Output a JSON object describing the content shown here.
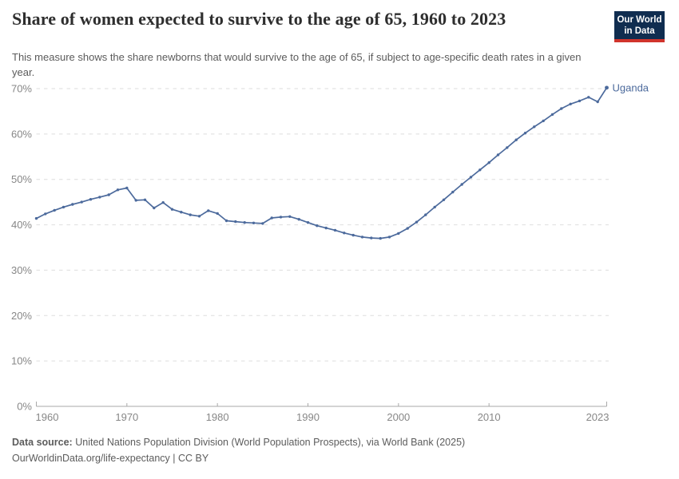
{
  "header": {
    "title": "Share of women expected to survive to the age of 65, 1960 to 2023",
    "subtitle": "This measure shows the share newborns that would survive to the age of 65, if subject to age-specific death rates in a given year.",
    "logo": {
      "line1": "Our World",
      "line2": "in Data"
    }
  },
  "chart_data": {
    "type": "line",
    "title": "Share of women expected to survive to the age of 65, 1960 to 2023",
    "xlabel": "",
    "ylabel": "",
    "y_unit": "%",
    "ylim": [
      0,
      70
    ],
    "y_ticks": [
      0,
      10,
      20,
      30,
      40,
      50,
      60,
      70
    ],
    "x_ticks": [
      1960,
      1970,
      1980,
      1990,
      2000,
      2010,
      2023
    ],
    "grid": "horizontal-dashed",
    "legend": "end-of-line-label",
    "series": [
      {
        "name": "Uganda",
        "color": "#4C6A9C",
        "x": [
          1960,
          1961,
          1962,
          1963,
          1964,
          1965,
          1966,
          1967,
          1968,
          1969,
          1970,
          1971,
          1972,
          1973,
          1974,
          1975,
          1976,
          1977,
          1978,
          1979,
          1980,
          1981,
          1982,
          1983,
          1984,
          1985,
          1986,
          1987,
          1988,
          1989,
          1990,
          1991,
          1992,
          1993,
          1994,
          1995,
          1996,
          1997,
          1998,
          1999,
          2000,
          2001,
          2002,
          2003,
          2004,
          2005,
          2006,
          2007,
          2008,
          2009,
          2010,
          2011,
          2012,
          2013,
          2014,
          2015,
          2016,
          2017,
          2018,
          2019,
          2020,
          2021,
          2022,
          2023
        ],
        "values": [
          41.4,
          42.4,
          43.2,
          43.9,
          44.5,
          45.0,
          45.6,
          46.1,
          46.6,
          47.7,
          48.1,
          45.4,
          45.5,
          43.7,
          44.9,
          43.4,
          42.8,
          42.2,
          41.9,
          43.1,
          42.5,
          40.9,
          40.7,
          40.5,
          40.4,
          40.3,
          41.5,
          41.7,
          41.8,
          41.2,
          40.5,
          39.8,
          39.3,
          38.8,
          38.2,
          37.7,
          37.3,
          37.1,
          37.0,
          37.3,
          38.1,
          39.2,
          40.6,
          42.2,
          43.9,
          45.5,
          47.2,
          48.9,
          50.5,
          52.1,
          53.7,
          55.4,
          57.0,
          58.7,
          60.2,
          61.6,
          62.9,
          64.3,
          65.6,
          66.6,
          67.3,
          68.1,
          67.1,
          70.2
        ]
      }
    ]
  },
  "footer": {
    "source_label": "Data source:",
    "source_text": "United Nations Population Division (World Population Prospects), via World Bank (2025)",
    "license_line": "OurWorldinData.org/life-expectancy | CC BY"
  },
  "colors": {
    "line": "#4C6A9C",
    "grid": "#DEDEDE",
    "axis": "#A9A9A9",
    "tick_label": "#878787",
    "title": "#2E2E2E",
    "subtitle": "#5B5B5B",
    "footer": "#5C5C5C",
    "logo_bg": "#102D50",
    "logo_accent": "#D0342C",
    "background": "#FFFFFF"
  }
}
